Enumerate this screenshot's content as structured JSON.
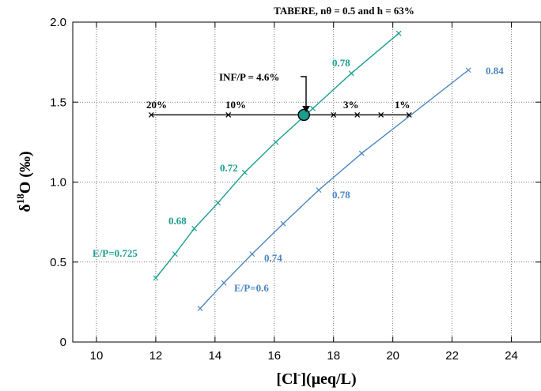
{
  "chart_data": {
    "type": "line",
    "title": "TABERE, nθ = 0.5 and h = 63%",
    "xlabel_main": "[Cl",
    "xlabel_sup": "-",
    "xlabel_rest": "](μeq/L)",
    "ylabel_main": "δ",
    "ylabel_sup": "18",
    "ylabel_rest": "O (‰)",
    "xlim": [
      9.2,
      25
    ],
    "ylim": [
      0,
      2.0
    ],
    "xticks": [
      10,
      12,
      14,
      16,
      18,
      20,
      22,
      24
    ],
    "yticks": [
      0,
      0.5,
      1.0,
      1.5,
      2.0
    ],
    "ytick_labels": [
      "0",
      "0.5",
      "1.0",
      "1.5",
      "2.0"
    ],
    "grid": true,
    "series": [
      {
        "color": "#1a9e8f",
        "x": [
          12.0,
          12.65,
          13.3,
          14.1,
          15.0,
          16.05,
          17.3,
          18.6,
          20.2
        ],
        "y": [
          0.4,
          0.55,
          0.71,
          0.87,
          1.06,
          1.25,
          1.46,
          1.68,
          1.93
        ]
      },
      {
        "color": "#4a86c0",
        "x": [
          13.5,
          14.3,
          15.25,
          16.3,
          17.5,
          18.95,
          22.55
        ],
        "y": [
          0.21,
          0.37,
          0.55,
          0.74,
          0.95,
          1.18,
          1.7
        ]
      },
      {
        "color": "#000000",
        "x": [
          11.85,
          14.45,
          17.0,
          18.0,
          18.8,
          19.6,
          20.55
        ],
        "y": [
          1.42,
          1.42,
          1.42,
          1.42,
          1.42,
          1.42,
          1.42
        ]
      }
    ],
    "highlight_point": {
      "x": 17.0,
      "y": 1.42
    },
    "annotations": {
      "inf_p": "INF/P = 4.6%",
      "black": [
        "20%",
        "10%",
        "3%",
        "1%"
      ],
      "teal": [
        "0.78",
        "0.72",
        "0.68",
        "E/P=0.725"
      ],
      "blue": [
        "0.84",
        "0.78",
        "0.74",
        "E/P=0.6"
      ]
    }
  }
}
